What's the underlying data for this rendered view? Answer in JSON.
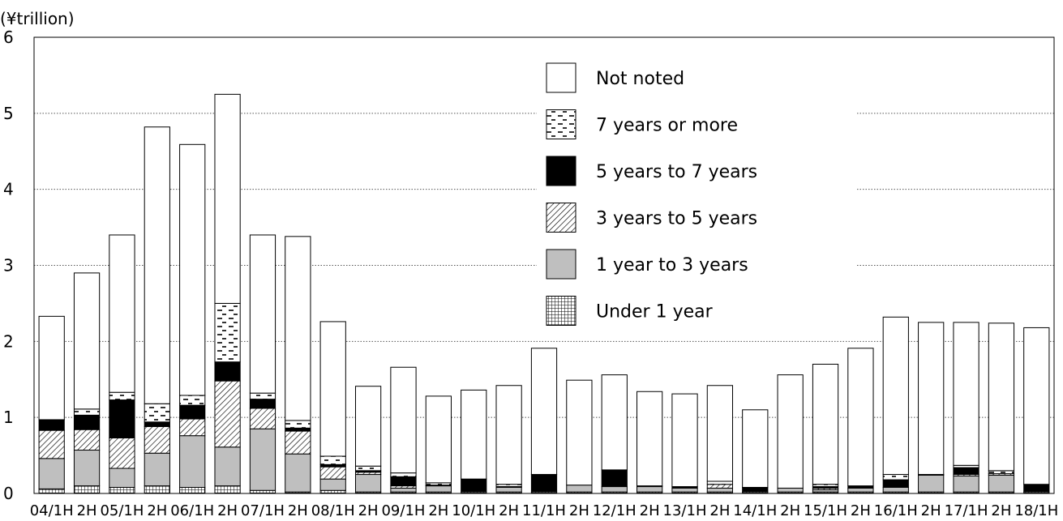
{
  "chart_data": {
    "type": "bar",
    "stacked": true,
    "unit_label": "(¥trillion)",
    "y_ticks": [
      "0",
      "1",
      "2",
      "3",
      "4",
      "5",
      "6"
    ],
    "ylim": [
      0,
      6
    ],
    "grid": "horizontal dotted",
    "legend_position": "top-right (inside plot)",
    "categories": [
      "04/1H",
      "2H",
      "05/1H",
      "2H",
      "06/1H",
      "2H",
      "07/1H",
      "2H",
      "08/1H",
      "2H",
      "09/1H",
      "2H",
      "10/1H",
      "2H",
      "11/1H",
      "2H",
      "12/1H",
      "2H",
      "13/1H",
      "2H",
      "14/1H",
      "2H",
      "15/1H",
      "2H",
      "16/1H",
      "2H",
      "17/1H",
      "2H",
      "18/1H"
    ],
    "series": [
      {
        "name": "Under 1 year",
        "pattern": "grid",
        "values": [
          0.06,
          0.1,
          0.08,
          0.1,
          0.08,
          0.1,
          0.04,
          0.02,
          0.04,
          0.02,
          0.02,
          0.02,
          0.02,
          0.02,
          0.02,
          0.02,
          0.02,
          0.02,
          0.02,
          0.02,
          0.02,
          0.02,
          0.02,
          0.02,
          0.02,
          0.02,
          0.02,
          0.02,
          0.02
        ]
      },
      {
        "name": "1 year to 3 years",
        "pattern": "gray",
        "values": [
          0.4,
          0.47,
          0.25,
          0.43,
          0.68,
          0.51,
          0.81,
          0.5,
          0.15,
          0.23,
          0.05,
          0.08,
          0.0,
          0.06,
          0.0,
          0.09,
          0.07,
          0.07,
          0.05,
          0.05,
          0.0,
          0.05,
          0.03,
          0.05,
          0.06,
          0.22,
          0.21,
          0.22,
          0.0
        ]
      },
      {
        "name": "3 years to 5 years",
        "pattern": "hatch",
        "values": [
          0.37,
          0.27,
          0.4,
          0.35,
          0.22,
          0.87,
          0.27,
          0.3,
          0.16,
          0.03,
          0.03,
          0.01,
          0.0,
          0.01,
          0.0,
          0.0,
          0.0,
          0.0,
          0.0,
          0.05,
          0.0,
          0.0,
          0.02,
          0.0,
          0.0,
          0.0,
          0.02,
          0.02,
          0.0
        ]
      },
      {
        "name": "5 years to 7 years",
        "pattern": "black",
        "values": [
          0.14,
          0.19,
          0.5,
          0.06,
          0.18,
          0.25,
          0.12,
          0.04,
          0.03,
          0.02,
          0.12,
          0.0,
          0.17,
          0.0,
          0.23,
          0.0,
          0.22,
          0.01,
          0.02,
          0.0,
          0.06,
          0.0,
          0.02,
          0.03,
          0.1,
          0.01,
          0.09,
          0.0,
          0.1
        ]
      },
      {
        "name": "7 years or more",
        "pattern": "dash",
        "values": [
          0.0,
          0.08,
          0.1,
          0.24,
          0.13,
          0.77,
          0.08,
          0.1,
          0.11,
          0.06,
          0.05,
          0.03,
          0.0,
          0.03,
          0.0,
          0.0,
          0.0,
          0.0,
          0.0,
          0.04,
          0.0,
          0.0,
          0.03,
          0.0,
          0.07,
          0.0,
          0.03,
          0.04,
          0.0
        ]
      },
      {
        "name": "Not noted",
        "pattern": "white",
        "values": [
          1.36,
          1.79,
          2.07,
          3.64,
          3.3,
          2.75,
          2.08,
          2.42,
          1.77,
          1.05,
          1.39,
          1.14,
          1.17,
          1.3,
          1.66,
          1.38,
          1.25,
          1.24,
          1.22,
          1.26,
          1.02,
          1.49,
          1.58,
          1.81,
          2.07,
          2.0,
          1.88,
          1.94,
          2.06
        ]
      }
    ],
    "legend_order": [
      "Not noted",
      "7 years or more",
      "5 years to 7 years",
      "3 years to 5 years",
      "1 year to 3 years",
      "Under 1 year"
    ],
    "legend_labels": {
      "Not noted": "Not noted",
      "7 years or more": "7 years or more",
      "5 years to 7 years": "5 years to 7 years",
      "3 years to 5 years": "3 years to 5 years",
      "1 year to 3 years": "1 year to 3 years",
      "Under 1 year": "Under 1 year"
    },
    "colors": {
      "axis": "#000000",
      "grid": "#555555",
      "gray_fill": "#bfbfbf",
      "black_fill": "#000000",
      "white_fill": "#ffffff"
    }
  }
}
